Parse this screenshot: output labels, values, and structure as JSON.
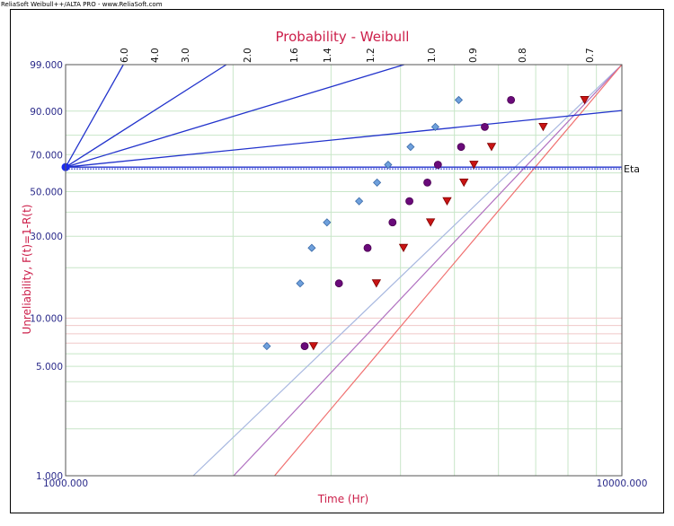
{
  "header_text": "ReliaSoft Weibull++/ALTA PRO - www.ReliaSoft.com",
  "colors": {
    "title": "#cc1f4a",
    "axis_label": "#cc1f4a",
    "tick_label": "#2a2a8a",
    "beta_lines": "#2233cc",
    "grid_green": "#c8e6c8",
    "grid_red": "#f0c8c8",
    "series_blue": "#6fa0dc",
    "series_purple": "#6a0a7a",
    "series_red": "#c81414",
    "fit_blue": "#a8b8e0",
    "fit_purple": "#b070c0",
    "fit_red": "#f07070"
  },
  "chart_data": {
    "type": "scatter",
    "title": "Probability - Weibull",
    "xlabel": "Time (Hr)",
    "ylabel": "Unreliability, F(t)=1-R(t)",
    "x_scale": "log",
    "y_scale": "weibull",
    "xlim": [
      1000,
      10000
    ],
    "ylim": [
      1,
      99
    ],
    "x_tick_labels": [
      "1000.000",
      "10000.000"
    ],
    "y_ticks": [
      1,
      5,
      10,
      30,
      50,
      70,
      90,
      99
    ],
    "y_tick_labels": [
      "1.000",
      "5.000",
      "10.000",
      "30.000",
      "50.000",
      "70.000",
      "90.000",
      "99.000"
    ],
    "eta_label": "Eta",
    "beta_ticks": [
      "6.0",
      "4.0",
      "3.0",
      "2.0",
      "1.6",
      "1.4",
      "1.2",
      "1.0",
      "0.9",
      "0.8",
      "0.7"
    ],
    "beta_pivot": {
      "x": 1000,
      "y": 63.2
    },
    "beta_lines": [
      {
        "x2": 1270,
        "y2": 99
      },
      {
        "x2": 1945,
        "y2": 99
      },
      {
        "x2": 4060,
        "y2": 99
      },
      {
        "x2": 10000,
        "y2": 90.2
      },
      {
        "x2": 10000,
        "y2": 63.2
      }
    ],
    "grid": true,
    "series": [
      {
        "marker": "diamond",
        "x": [
          2300,
          2640,
          2770,
          2950,
          3370,
          3630,
          3800,
          4170,
          4620,
          5090
        ],
        "y": [
          6.7,
          16.2,
          25.9,
          35.5,
          45.2,
          54.8,
          64.5,
          74.1,
          83.8,
          93.4
        ]
      },
      {
        "marker": "circle",
        "x": [
          2690,
          3100,
          3490,
          3870,
          4150,
          4470,
          4670,
          5140,
          5670,
          6320
        ],
        "y": [
          6.7,
          16.2,
          25.9,
          35.5,
          45.2,
          54.8,
          64.5,
          74.1,
          83.8,
          93.4
        ]
      },
      {
        "marker": "triangle-down",
        "x": [
          2790,
          3620,
          4050,
          4530,
          4850,
          5200,
          5420,
          5830,
          7220,
          8570
        ],
        "y": [
          6.7,
          16.2,
          25.9,
          35.5,
          45.2,
          54.8,
          64.5,
          74.1,
          83.8,
          93.4
        ]
      }
    ],
    "fit_lines": [
      {
        "x": [
          1696,
          10000
        ],
        "y": [
          1,
          99
        ]
      },
      {
        "x": [
          2005,
          10000
        ],
        "y": [
          1,
          99
        ]
      },
      {
        "x": [
          2375,
          10000
        ],
        "y": [
          1,
          99
        ]
      }
    ]
  }
}
